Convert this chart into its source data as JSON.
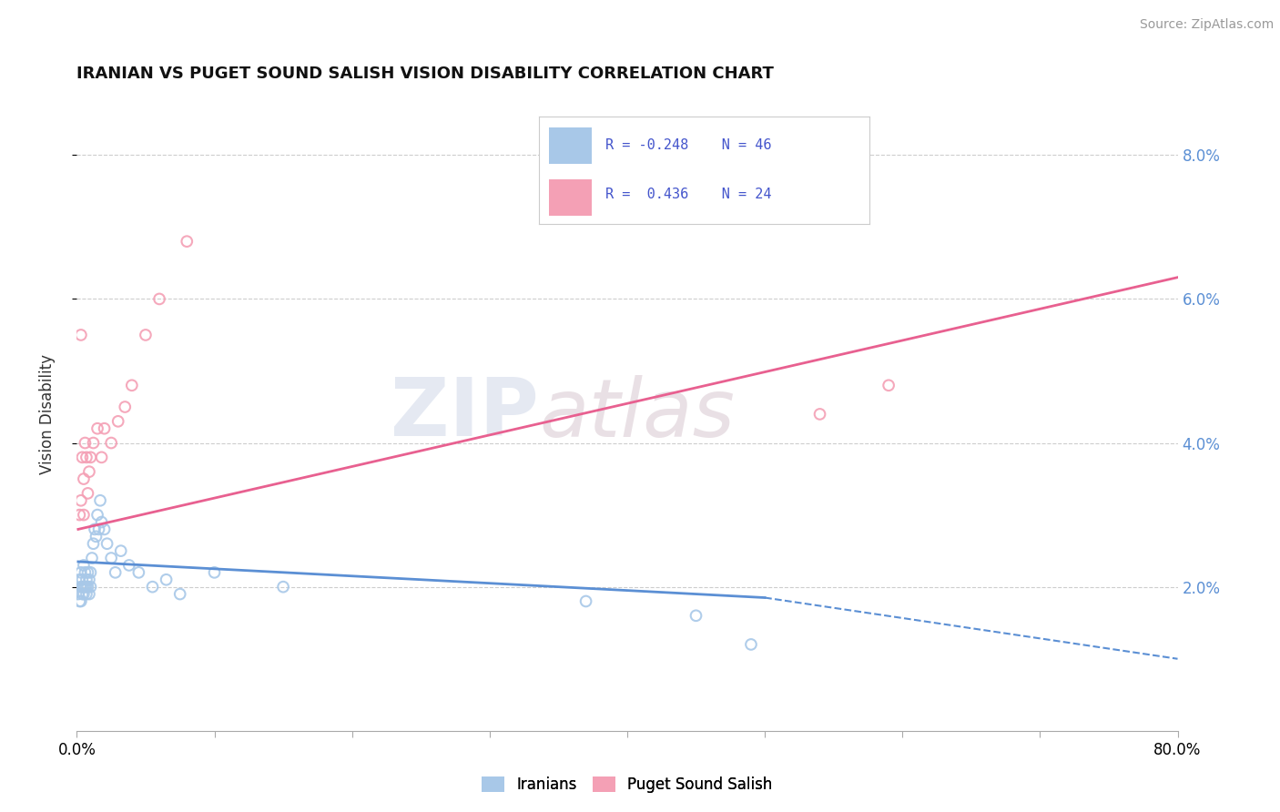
{
  "title": "IRANIAN VS PUGET SOUND SALISH VISION DISABILITY CORRELATION CHART",
  "source": "Source: ZipAtlas.com",
  "ylabel": "Vision Disability",
  "xlim": [
    0.0,
    0.8
  ],
  "ylim": [
    0.0,
    0.088
  ],
  "yticks": [
    0.02,
    0.04,
    0.06,
    0.08
  ],
  "ytick_labels": [
    "2.0%",
    "4.0%",
    "6.0%",
    "8.0%"
  ],
  "xticks": [
    0.0,
    0.1,
    0.2,
    0.3,
    0.4,
    0.5,
    0.6,
    0.7,
    0.8
  ],
  "color_iranians": "#a8c8e8",
  "color_puget": "#f4a0b5",
  "color_line_iranians": "#5b8fd4",
  "color_line_puget": "#e86090",
  "background_color": "#ffffff",
  "grid_color": "#c8c8c8",
  "legend_text_color": "#4455cc",
  "watermark": "ZIPAtlas",
  "iranians_x": [
    0.001,
    0.002,
    0.002,
    0.003,
    0.003,
    0.003,
    0.004,
    0.004,
    0.004,
    0.005,
    0.005,
    0.005,
    0.006,
    0.006,
    0.007,
    0.007,
    0.007,
    0.008,
    0.008,
    0.009,
    0.009,
    0.01,
    0.01,
    0.011,
    0.012,
    0.013,
    0.014,
    0.015,
    0.016,
    0.017,
    0.018,
    0.02,
    0.022,
    0.025,
    0.028,
    0.032,
    0.038,
    0.045,
    0.055,
    0.065,
    0.075,
    0.1,
    0.15,
    0.37,
    0.45,
    0.49
  ],
  "iranians_y": [
    0.019,
    0.021,
    0.018,
    0.02,
    0.022,
    0.018,
    0.02,
    0.019,
    0.021,
    0.02,
    0.023,
    0.019,
    0.02,
    0.022,
    0.019,
    0.021,
    0.02,
    0.022,
    0.02,
    0.021,
    0.019,
    0.022,
    0.02,
    0.024,
    0.026,
    0.028,
    0.027,
    0.03,
    0.028,
    0.032,
    0.029,
    0.028,
    0.026,
    0.024,
    0.022,
    0.025,
    0.023,
    0.022,
    0.02,
    0.021,
    0.019,
    0.022,
    0.02,
    0.018,
    0.016,
    0.012
  ],
  "puget_x": [
    0.002,
    0.003,
    0.003,
    0.004,
    0.005,
    0.005,
    0.006,
    0.007,
    0.008,
    0.009,
    0.01,
    0.012,
    0.015,
    0.018,
    0.02,
    0.025,
    0.03,
    0.035,
    0.04,
    0.05,
    0.06,
    0.08,
    0.54,
    0.59
  ],
  "puget_y": [
    0.03,
    0.055,
    0.032,
    0.038,
    0.035,
    0.03,
    0.04,
    0.038,
    0.033,
    0.036,
    0.038,
    0.04,
    0.042,
    0.038,
    0.042,
    0.04,
    0.043,
    0.045,
    0.048,
    0.055,
    0.06,
    0.068,
    0.044,
    0.048
  ],
  "iran_line_x_start": 0.001,
  "iran_line_x_solid_end": 0.5,
  "iran_line_x_dashed_end": 0.8,
  "iran_line_y_start": 0.0235,
  "iran_line_y_solid_end": 0.0185,
  "iran_line_y_dashed_end": 0.01,
  "puget_line_x_start": 0.001,
  "puget_line_x_end": 0.8,
  "puget_line_y_start": 0.028,
  "puget_line_y_end": 0.063
}
